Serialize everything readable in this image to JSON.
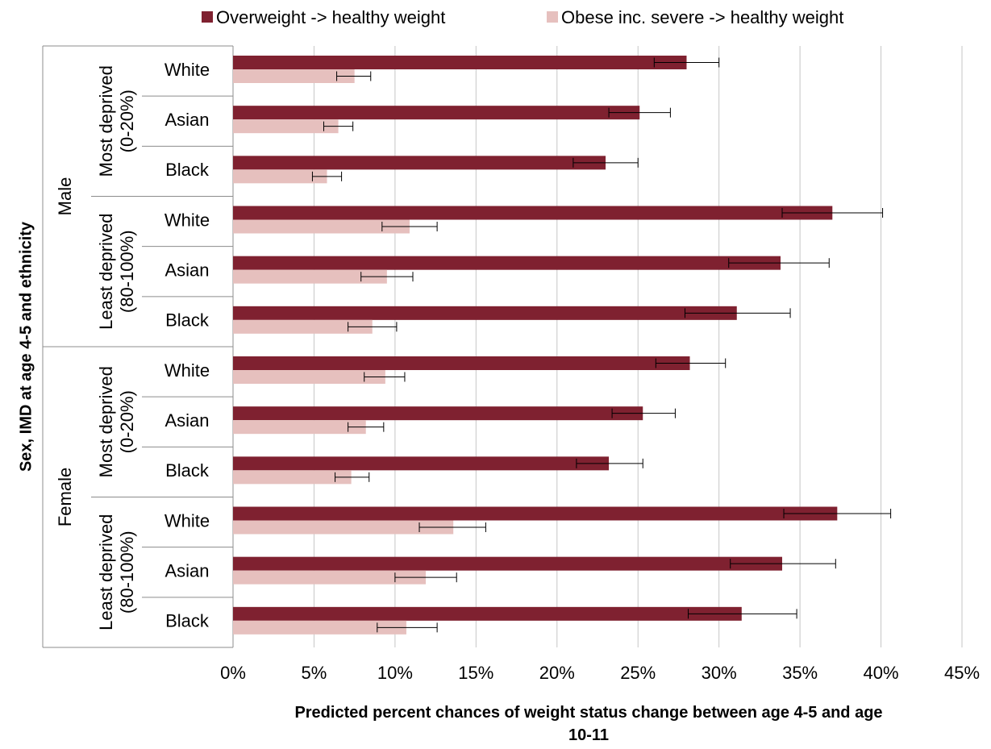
{
  "chart_data": {
    "type": "bar",
    "orientation": "horizontal",
    "xlabel": "Predicted percent chances of weight status change between age 4-5 and age 10-11",
    "xlabel_lines": [
      "Predicted percent chances of weight status change between age 4-5 and age",
      "10-11"
    ],
    "ylabel": "Sex, IMD at age 4-5 and ethnicity",
    "xlim": [
      0,
      45
    ],
    "xticks": [
      "0%",
      "5%",
      "10%",
      "15%",
      "20%",
      "25%",
      "30%",
      "35%",
      "40%",
      "45%"
    ],
    "grid": true,
    "legend_position": "top",
    "sexes": [
      "Male",
      "Female"
    ],
    "imd_groups": [
      {
        "sex": "Male",
        "lines": [
          "Most deprived",
          "(0-20%)"
        ]
      },
      {
        "sex": "Male",
        "lines": [
          "Least deprived",
          "(80-100%)"
        ]
      },
      {
        "sex": "Female",
        "lines": [
          "Most deprived",
          "(0-20%)"
        ]
      },
      {
        "sex": "Female",
        "lines": [
          "Least deprived",
          "(80-100%)"
        ]
      }
    ],
    "categories": [
      "White",
      "Asian",
      "Black",
      "White",
      "Asian",
      "Black",
      "White",
      "Asian",
      "Black",
      "White",
      "Asian",
      "Black"
    ],
    "series": [
      {
        "name": "Overweight -> healthy weight",
        "color": "#7f2130",
        "values": [
          28.0,
          25.1,
          23.0,
          37.0,
          33.8,
          31.1,
          28.2,
          25.3,
          23.2,
          37.3,
          33.9,
          31.4
        ],
        "error_low": [
          26.0,
          23.2,
          21.0,
          33.9,
          30.6,
          27.9,
          26.1,
          23.4,
          21.2,
          34.0,
          30.7,
          28.1
        ],
        "error_high": [
          30.0,
          27.0,
          25.0,
          40.1,
          36.8,
          34.4,
          30.4,
          27.3,
          25.3,
          40.6,
          37.2,
          34.8
        ]
      },
      {
        "name": "Obese inc. severe -> healthy weight",
        "color": "#e6c0be",
        "values": [
          7.5,
          6.5,
          5.8,
          10.9,
          9.5,
          8.6,
          9.4,
          8.2,
          7.3,
          13.6,
          11.9,
          10.7
        ],
        "error_low": [
          6.4,
          5.6,
          4.9,
          9.2,
          7.9,
          7.1,
          8.1,
          7.1,
          6.3,
          11.5,
          10.0,
          8.9
        ],
        "error_high": [
          8.5,
          7.4,
          6.7,
          12.6,
          11.1,
          10.1,
          10.6,
          9.3,
          8.4,
          15.6,
          13.8,
          12.6
        ]
      }
    ]
  }
}
